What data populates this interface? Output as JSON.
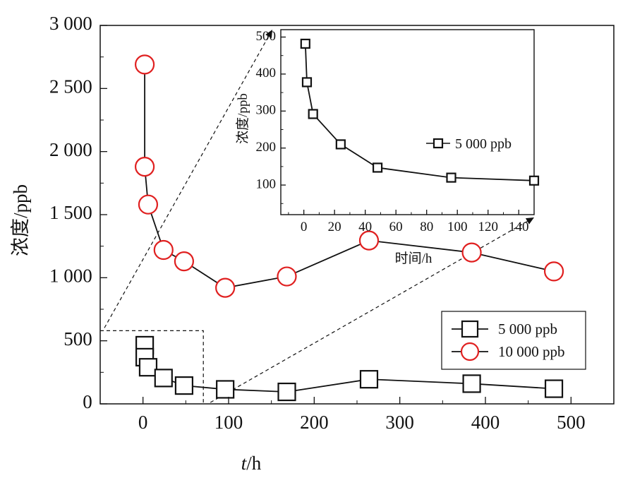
{
  "chart_data": [
    {
      "id": "main",
      "type": "line",
      "xlabel": "t/h",
      "xlabel_italic_part": "t",
      "xlabel_rest": "/h",
      "ylabel": "浓度/ppb",
      "xlim": [
        -50,
        550
      ],
      "ylim": [
        0,
        3000
      ],
      "xticks": [
        0,
        100,
        200,
        300,
        400,
        500
      ],
      "yticks": [
        0,
        500,
        1000,
        1500,
        2000,
        2500,
        3000
      ],
      "xtick_labels": [
        "0",
        "100",
        "200",
        "300",
        "400",
        "500"
      ],
      "ytick_labels": [
        "0",
        "500",
        "1 000",
        "1 500",
        "2 000",
        "2 500",
        "3 000"
      ],
      "legend_position": "lower-right",
      "series": [
        {
          "name": "5 000 ppb",
          "marker": "square",
          "color": "#000000",
          "x": [
            2,
            2,
            6,
            24,
            48,
            96,
            168,
            264,
            384,
            480
          ],
          "y": [
            465,
            370,
            290,
            205,
            145,
            115,
            95,
            195,
            160,
            120
          ]
        },
        {
          "name": "10 000 ppb",
          "marker": "circle",
          "color": "#e02020",
          "x": [
            2,
            2,
            6,
            24,
            48,
            96,
            168,
            264,
            384,
            480
          ],
          "y": [
            2690,
            1880,
            1580,
            1220,
            1130,
            920,
            1010,
            1295,
            1200,
            1050
          ]
        }
      ]
    },
    {
      "id": "inset",
      "type": "line",
      "xlabel": "时间/h",
      "ylabel": "浓度/ppb",
      "xlim": [
        -15,
        150
      ],
      "ylim": [
        20,
        520
      ],
      "xticks": [
        0,
        20,
        40,
        60,
        80,
        100,
        120,
        140
      ],
      "yticks": [
        100,
        200,
        300,
        400,
        500
      ],
      "xtick_labels": [
        "0",
        "20",
        "40",
        "60",
        "80",
        "100",
        "120",
        "140"
      ],
      "ytick_labels": [
        "100",
        "200",
        "300",
        "400",
        "500"
      ],
      "legend_position": "right",
      "series": [
        {
          "name": "5 000 ppb",
          "marker": "square",
          "color": "#000000",
          "x": [
            1,
            2,
            6,
            24,
            48,
            96,
            150
          ],
          "y": [
            482,
            378,
            292,
            210,
            147,
            120,
            112
          ]
        }
      ]
    }
  ]
}
